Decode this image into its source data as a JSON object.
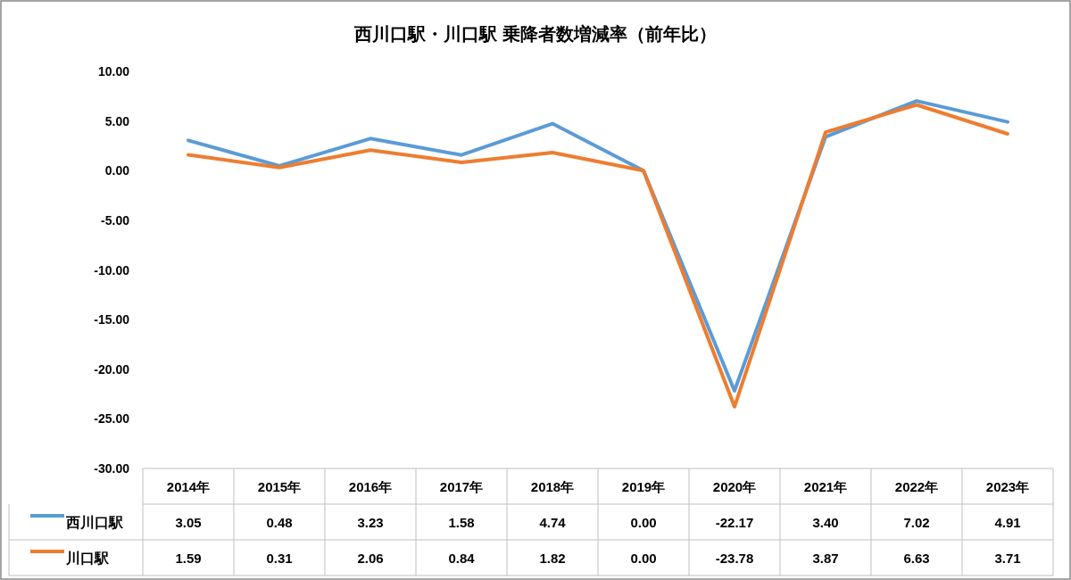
{
  "chart_data": {
    "type": "line",
    "title": "西川口駅・川口駅 乗降者数増減率（前年比）",
    "categories": [
      "2014年",
      "2015年",
      "2016年",
      "2017年",
      "2018年",
      "2019年",
      "2020年",
      "2021年",
      "2022年",
      "2023年"
    ],
    "series": [
      {
        "name": "西川口駅",
        "color": "#5b9bd5",
        "values": [
          3.05,
          0.48,
          3.23,
          1.58,
          4.74,
          0.0,
          -22.17,
          3.4,
          7.02,
          4.91
        ],
        "value_labels": [
          "3.05",
          "0.48",
          "3.23",
          "1.58",
          "4.74",
          "0.00",
          "-22.17",
          "3.40",
          "7.02",
          "4.91"
        ]
      },
      {
        "name": "川口駅",
        "color": "#ed7d31",
        "values": [
          1.59,
          0.31,
          2.06,
          0.84,
          1.82,
          0.0,
          -23.78,
          3.87,
          6.63,
          3.71
        ],
        "value_labels": [
          "1.59",
          "0.31",
          "2.06",
          "0.84",
          "1.82",
          "0.00",
          "-23.78",
          "3.87",
          "6.63",
          "3.71"
        ]
      }
    ],
    "ylim": [
      -30,
      10
    ],
    "yticks": [
      {
        "value": -30,
        "label": "-30.00"
      },
      {
        "value": -25,
        "label": "-25.00"
      },
      {
        "value": -20,
        "label": "-20.00"
      },
      {
        "value": -15,
        "label": "-15.00"
      },
      {
        "value": -10,
        "label": "-10.00"
      },
      {
        "value": -5,
        "label": "-5.00"
      },
      {
        "value": 0,
        "label": "0.00"
      },
      {
        "value": 5,
        "label": "5.00"
      },
      {
        "value": 10,
        "label": "10.00"
      }
    ],
    "legend": "bottom",
    "marker": "none",
    "line_style": "solid"
  }
}
